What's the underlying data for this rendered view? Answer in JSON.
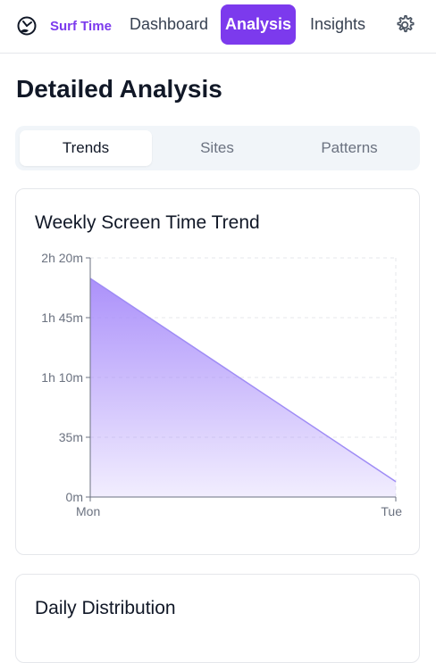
{
  "app": {
    "name": "Surf Time",
    "logo_icon": "clock-surfer-icon"
  },
  "nav": {
    "items": [
      {
        "label": "Dashboard",
        "active": false
      },
      {
        "label": "Analysis",
        "active": true
      },
      {
        "label": "Insights",
        "active": false
      }
    ],
    "settings_icon": "gear-icon"
  },
  "page": {
    "title": "Detailed Analysis"
  },
  "tabs": [
    {
      "label": "Trends",
      "active": true
    },
    {
      "label": "Sites",
      "active": false
    },
    {
      "label": "Patterns",
      "active": false
    }
  ],
  "colors": {
    "accent": "#7c3aed",
    "area_top": "#a78bfa",
    "area_line": "#9f8cf5"
  },
  "cards": {
    "trend": {
      "title": "Weekly Screen Time Trend"
    },
    "distribution": {
      "title": "Daily Distribution"
    }
  },
  "chart_data": {
    "type": "area",
    "title": "Weekly Screen Time Trend",
    "x": [
      "Mon",
      "Tue"
    ],
    "series": [
      {
        "values": [
          128,
          9
        ]
      }
    ],
    "y_unit": "minutes",
    "ylim": [
      0,
      140
    ],
    "y_ticks": [
      0,
      35,
      70,
      105,
      140
    ],
    "y_tick_labels": [
      "0m",
      "35m",
      "1h 10m",
      "1h 45m",
      "2h 20m"
    ],
    "grid": true
  }
}
